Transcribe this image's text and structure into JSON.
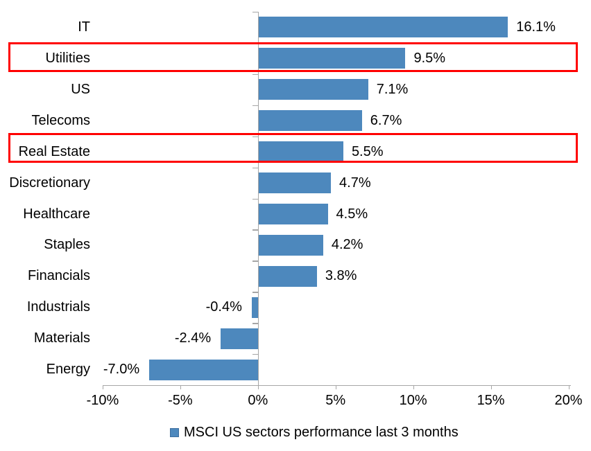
{
  "chart_data": {
    "type": "bar",
    "orientation": "horizontal",
    "categories": [
      "IT",
      "Utilities",
      "US",
      "Telecoms",
      "Real Estate",
      "Discretionary",
      "Healthcare",
      "Staples",
      "Financials",
      "Industrials",
      "Materials",
      "Energy"
    ],
    "values": [
      16.1,
      9.5,
      7.1,
      6.7,
      5.5,
      4.7,
      4.5,
      4.2,
      3.8,
      -0.4,
      -2.4,
      -7.0
    ],
    "value_labels": [
      "16.1%",
      "9.5%",
      "7.1%",
      "6.7%",
      "5.5%",
      "4.7%",
      "4.5%",
      "4.2%",
      "3.8%",
      "-0.4%",
      "-2.4%",
      "-7.0%"
    ],
    "x_tick_labels": [
      "-10%",
      "-5%",
      "0%",
      "5%",
      "10%",
      "15%",
      "20%"
    ],
    "x_tick_values": [
      -10,
      -5,
      0,
      5,
      10,
      15,
      20
    ],
    "xlim": [
      -10,
      20
    ],
    "legend": "MSCI US sectors performance last 3 months",
    "legend_position": "bottom",
    "grid": false,
    "highlighted_categories": [
      "Utilities",
      "Real Estate"
    ],
    "colors": {
      "bar": "#4d88bd",
      "legend_swatch_border": "#3c6e9f",
      "axis": "#a6a6a6",
      "highlight": "#ff0000",
      "text": "#000000",
      "background": "#ffffff"
    }
  }
}
